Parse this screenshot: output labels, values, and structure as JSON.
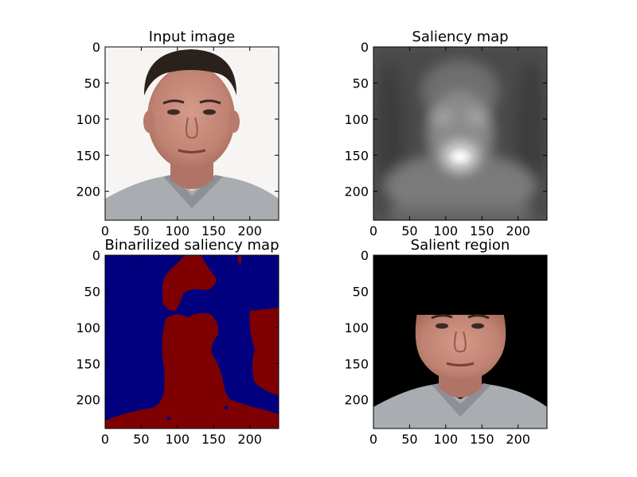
{
  "chart_data": [
    {
      "type": "image",
      "title": "Input image",
      "image": "photo of a man's face on a white background",
      "x_ticks": [
        0,
        50,
        100,
        150,
        200
      ],
      "y_ticks": [
        0,
        50,
        100,
        150,
        200
      ],
      "xlim": [
        0,
        240
      ],
      "ylim": [
        240,
        0
      ]
    },
    {
      "type": "image",
      "title": "Saliency map",
      "image": "grayscale blurred saliency map, bright region over the face and chin",
      "x_ticks": [
        0,
        50,
        100,
        150,
        200
      ],
      "y_ticks": [
        0,
        50,
        100,
        150,
        200
      ],
      "xlim": [
        0,
        240
      ],
      "ylim": [
        240,
        0
      ]
    },
    {
      "type": "image",
      "title": "Binarilized saliency map",
      "image": "two-level map: blue background, dark red salient blobs",
      "colors": {
        "background": "#00007f",
        "salient": "#7f0000"
      },
      "x_ticks": [
        0,
        50,
        100,
        150,
        200
      ],
      "y_ticks": [
        0,
        50,
        100,
        150,
        200
      ],
      "xlim": [
        0,
        240
      ],
      "ylim": [
        240,
        0
      ]
    },
    {
      "type": "image",
      "title": "Salient region",
      "image": "face and shoulders isolated on a black background",
      "x_ticks": [
        0,
        50,
        100,
        150,
        200
      ],
      "y_ticks": [
        0,
        50,
        100,
        150,
        200
      ],
      "xlim": [
        0,
        240
      ],
      "ylim": [
        240,
        0
      ]
    }
  ]
}
